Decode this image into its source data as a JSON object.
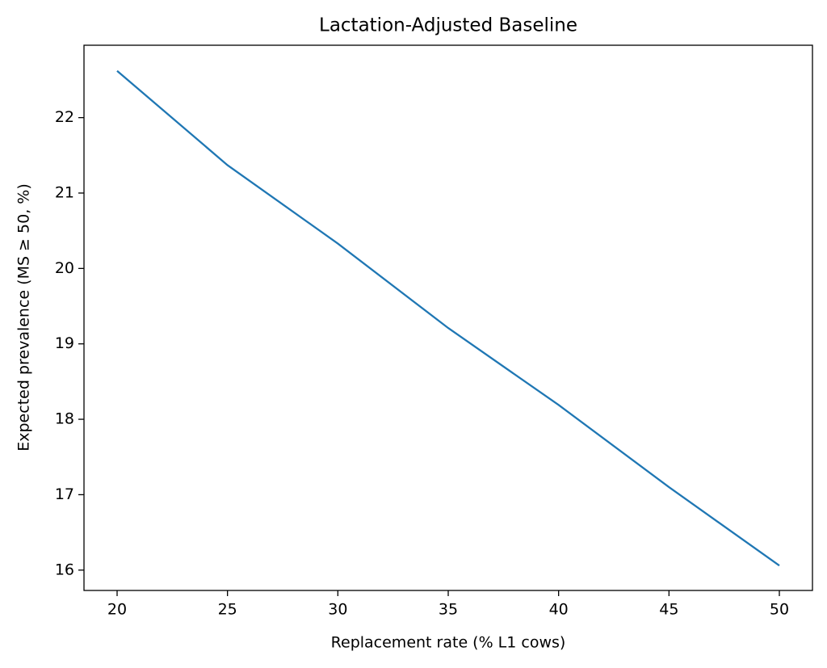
{
  "chart_data": {
    "type": "line",
    "title": "Lactation-Adjusted Baseline",
    "x_label": "Replacement rate (% L1 cows)",
    "y_label": "Expected prevalence (MS ≥ 50, %)",
    "x": [
      20,
      25,
      30,
      35,
      40,
      45,
      50
    ],
    "series": [
      {
        "color": "#1f77b4",
        "values": [
          22.62,
          21.37,
          20.33,
          19.21,
          18.19,
          17.1,
          16.06
        ]
      }
    ],
    "xlim": [
      18.5,
      51.5
    ],
    "ylim": [
      15.73,
      22.96
    ],
    "xticks": [
      20,
      25,
      30,
      35,
      40,
      45,
      50
    ],
    "yticks": [
      16,
      17,
      18,
      19,
      20,
      21,
      22
    ],
    "grid": false
  }
}
